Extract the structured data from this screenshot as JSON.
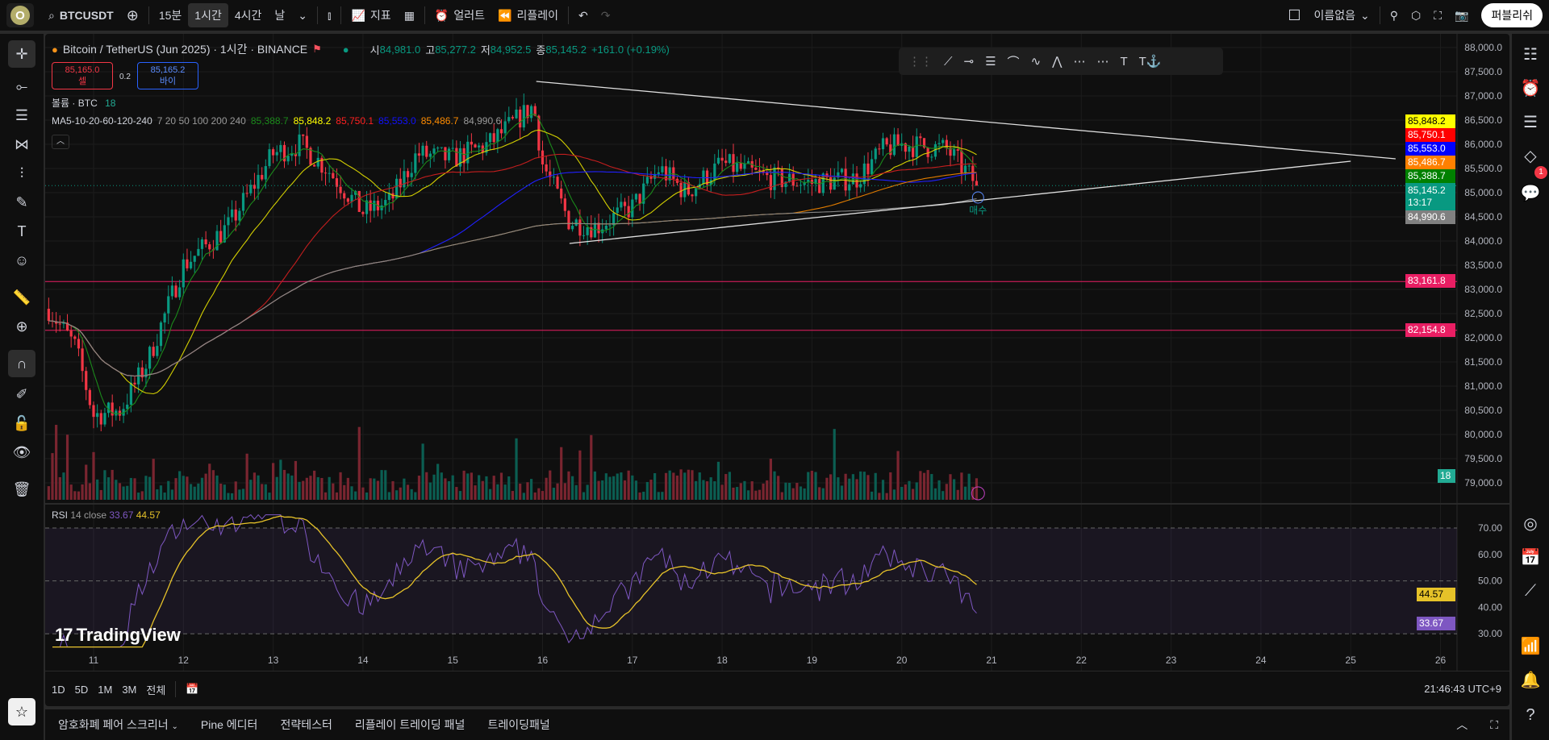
{
  "topbar": {
    "avatar_letter": "O",
    "symbol": "BTCUSDT",
    "intervals": [
      "15분",
      "1시간",
      "4시간",
      "날"
    ],
    "active_interval": "1시간",
    "indicators_label": "지표",
    "alert_label": "얼러트",
    "replay_label": "리플레이",
    "layout_name": "이름없음",
    "publish_label": "퍼블리쉬"
  },
  "legend": {
    "title": "Bitcoin / TetherUS (Jun 2025) · 1시간 · BINANCE",
    "o_label": "시",
    "o": "84,981.0",
    "h_label": "고",
    "h": "85,277.2",
    "l_label": "저",
    "l": "84,952.5",
    "c_label": "종",
    "c": "85,145.2",
    "change": "+161.0 (+0.19%)",
    "sell_price": "85,165.0",
    "sell_label": "셀",
    "spread": "0.2",
    "buy_price": "85,165.2",
    "buy_label": "바이",
    "volume_label": "볼륨 · BTC",
    "volume_value": "18",
    "ma_label": "MA5-10-20-60-120-240",
    "ma_params": "7 20 50 100 200 240",
    "ma_values": [
      {
        "value": "85,388.7",
        "color": "#1b8a1b"
      },
      {
        "value": "85,848.2",
        "color": "#ffff00"
      },
      {
        "value": "85,750.1",
        "color": "#ff2020"
      },
      {
        "value": "85,553.0",
        "color": "#1010ff"
      },
      {
        "value": "85,486.7",
        "color": "#ff8c00"
      },
      {
        "value": "84,990.6",
        "color": "#9a9a9a"
      }
    ]
  },
  "price_axis": {
    "ticks": [
      "88,000.0",
      "87,500.0",
      "87,000.0",
      "86,500.0",
      "86,000.0",
      "85,500.0",
      "85,000.0",
      "84,500.0",
      "84,000.0",
      "83,500.0",
      "83,000.0",
      "82,500.0",
      "82,000.0",
      "81,500.0",
      "81,000.0",
      "80,500.0",
      "80,000.0",
      "79,500.0",
      "79,000.0"
    ],
    "tick_values": [
      88000,
      87500,
      87000,
      86500,
      86000,
      85500,
      85000,
      84500,
      84000,
      83500,
      83000,
      82500,
      82000,
      81500,
      81000,
      80500,
      80000,
      79500,
      79000
    ],
    "labels": [
      {
        "text": "85,848.2",
        "value": 85848.2,
        "bg": "#ffff00",
        "fg": "#000000"
      },
      {
        "text": "85,750.1",
        "value": 85750.1,
        "bg": "#ff0000",
        "fg": "#ffffff"
      },
      {
        "text": "85,553.0",
        "value": 85553.0,
        "bg": "#0000ff",
        "fg": "#ffffff"
      },
      {
        "text": "85,486.7",
        "value": 85486.7,
        "bg": "#ff8000",
        "fg": "#ffffff"
      },
      {
        "text": "85,388.7",
        "value": 85388.7,
        "bg": "#008000",
        "fg": "#ffffff"
      },
      {
        "text": "85,145.2",
        "value": 85145.2,
        "bg": "#089981",
        "fg": "#ffffff",
        "sub": "13:17"
      },
      {
        "text": "84,990.6",
        "value": 84990.6,
        "bg": "#808080",
        "fg": "#ffffff"
      },
      {
        "text": "83,161.8",
        "value": 83161.8,
        "bg": "#e91e63",
        "fg": "#ffffff"
      },
      {
        "text": "82,154.8",
        "value": 82154.8,
        "bg": "#e91e63",
        "fg": "#ffffff"
      }
    ],
    "volume_badge": "18",
    "horizontal_lines": [
      83161.8,
      82154.8
    ]
  },
  "price_path": [
    [
      10.5,
      82600
    ],
    [
      10.8,
      81800
    ],
    [
      11.0,
      80400
    ],
    [
      11.3,
      80500
    ],
    [
      11.6,
      81500
    ],
    [
      12.0,
      83500
    ],
    [
      12.5,
      84300
    ],
    [
      13.0,
      85800
    ],
    [
      13.3,
      86000
    ],
    [
      13.6,
      85500
    ],
    [
      14.0,
      84600
    ],
    [
      14.3,
      84800
    ],
    [
      14.6,
      85800
    ],
    [
      15.0,
      85700
    ],
    [
      15.4,
      86000
    ],
    [
      15.9,
      86800
    ],
    [
      16.0,
      85600
    ],
    [
      16.3,
      84400
    ],
    [
      16.6,
      84300
    ],
    [
      17.0,
      84700
    ],
    [
      17.3,
      85500
    ],
    [
      17.6,
      85000
    ],
    [
      18.0,
      85600
    ],
    [
      18.5,
      85300
    ],
    [
      19.0,
      85200
    ],
    [
      19.5,
      85300
    ],
    [
      19.8,
      85900
    ],
    [
      20.0,
      86000
    ],
    [
      20.5,
      85900
    ],
    [
      20.85,
      85145
    ]
  ],
  "trendlines": [
    [
      [
        15.93,
        87300
      ],
      [
        25.5,
        85700
      ]
    ],
    [
      [
        16.3,
        83950
      ],
      [
        25.0,
        85650
      ]
    ]
  ],
  "signal_label": "매수",
  "rsi": {
    "label": "RSI",
    "params": "14 close",
    "value": "33.67",
    "ma_value": "44.57",
    "ticks": [
      "70.00",
      "60.00",
      "50.00",
      "40.00",
      "30.00"
    ],
    "tick_values": [
      70,
      60,
      50,
      40,
      30
    ]
  },
  "watermark": "TradingView",
  "time_axis": {
    "days": [
      "11",
      "12",
      "13",
      "14",
      "15",
      "16",
      "17",
      "18",
      "19",
      "20",
      "21",
      "22",
      "23",
      "24",
      "25",
      "26"
    ],
    "clock": "21:46:43 UTC+9"
  },
  "ranges": [
    "1D",
    "5D",
    "1M",
    "3M",
    "전체"
  ],
  "bottom_tabs": [
    "암호화폐 페어 스크리너",
    "Pine 에디터",
    "전략테스터",
    "리플레이 트레이딩 패널",
    "트레이딩패널"
  ],
  "notifications_badge": "1"
}
